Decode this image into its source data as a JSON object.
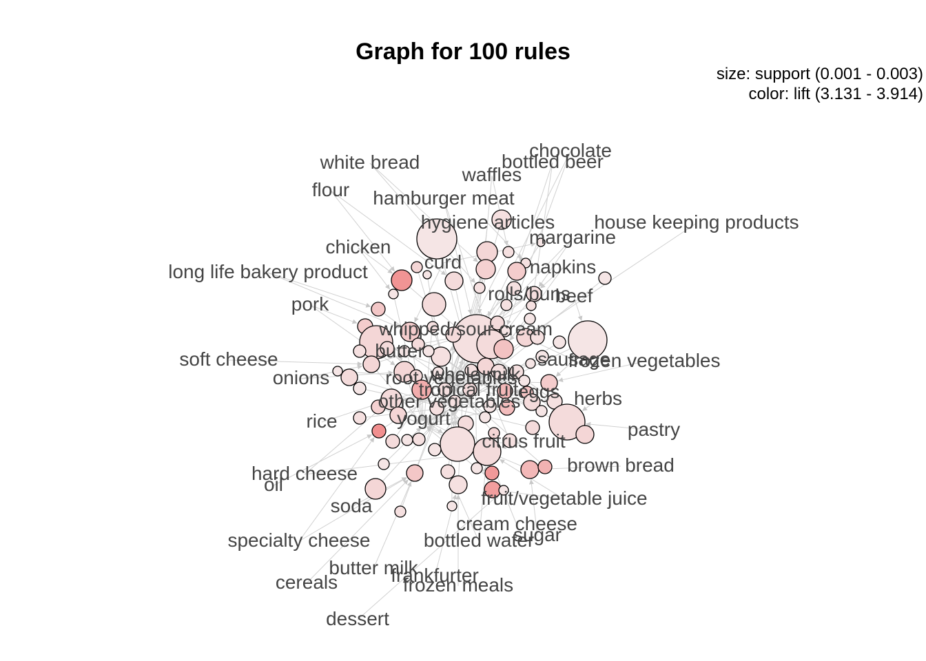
{
  "title": "Graph for 100 rules",
  "legend": {
    "size": "size: support (0.001 - 0.003)",
    "color": "color: lift (3.131 - 3.914)"
  },
  "colors": {
    "edge": "#d0d0d0",
    "label": "#444444",
    "node_stroke": "#000000",
    "lift_low": "#f5eaea",
    "lift_high": "#f08585"
  },
  "items": [
    "chocolate",
    "bottled beer",
    "white bread",
    "waffles",
    "flour",
    "hamburger meat",
    "hygiene articles",
    "house keeping products",
    "chicken",
    "margarine",
    "curd",
    "long life bakery product",
    "napkins",
    "pork",
    "rolls/buns",
    "beef",
    "whipped/sour cream",
    "butter",
    "soft cheese",
    "frozen vegetables",
    "sausage",
    "whole milk",
    "onions",
    "root vegetables",
    "tropical fruit",
    "other vegetables",
    "eggs",
    "herbs",
    "rice",
    "yogurt",
    "pastry",
    "citrus fruit",
    "brown bread",
    "hard cheese",
    "oil",
    "fruit/vegetable juice",
    "soda",
    "cream cheese",
    "sugar",
    "specialty cheese",
    "bottled water",
    "butter milk",
    "frankfurter",
    "cereals",
    "frozen meals",
    "dessert"
  ]
}
